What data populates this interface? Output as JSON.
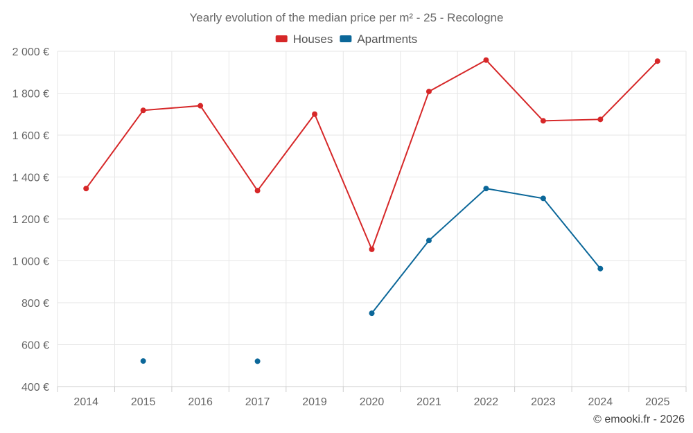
{
  "chart_data": {
    "type": "line",
    "title": "Yearly evolution of the median price per m² - 25 - Recologne",
    "categories": [
      "2014",
      "2015",
      "2016",
      "2017",
      "2019",
      "2020",
      "2021",
      "2022",
      "2023",
      "2024",
      "2025"
    ],
    "series": [
      {
        "name": "Houses",
        "color": "#d62728",
        "values": [
          1345,
          1718,
          1740,
          1335,
          1700,
          1055,
          1808,
          1958,
          1668,
          1675,
          1953
        ]
      },
      {
        "name": "Apartments",
        "color": "#0b6799",
        "values": [
          null,
          522,
          null,
          521,
          null,
          750,
          1097,
          1345,
          1298,
          963,
          null
        ]
      }
    ],
    "ylim": [
      400,
      2000
    ],
    "yticks": [
      400,
      600,
      800,
      1000,
      1200,
      1400,
      1600,
      1800,
      2000
    ],
    "ytick_labels": [
      "400 €",
      "600 €",
      "800 €",
      "1 000 €",
      "1 200 €",
      "1 400 €",
      "1 600 €",
      "1 800 €",
      "2 000 €"
    ],
    "xlabel": "",
    "ylabel": "",
    "grid": true,
    "legend_position": "top-center"
  },
  "credit": "© emooki.fr - 2026"
}
